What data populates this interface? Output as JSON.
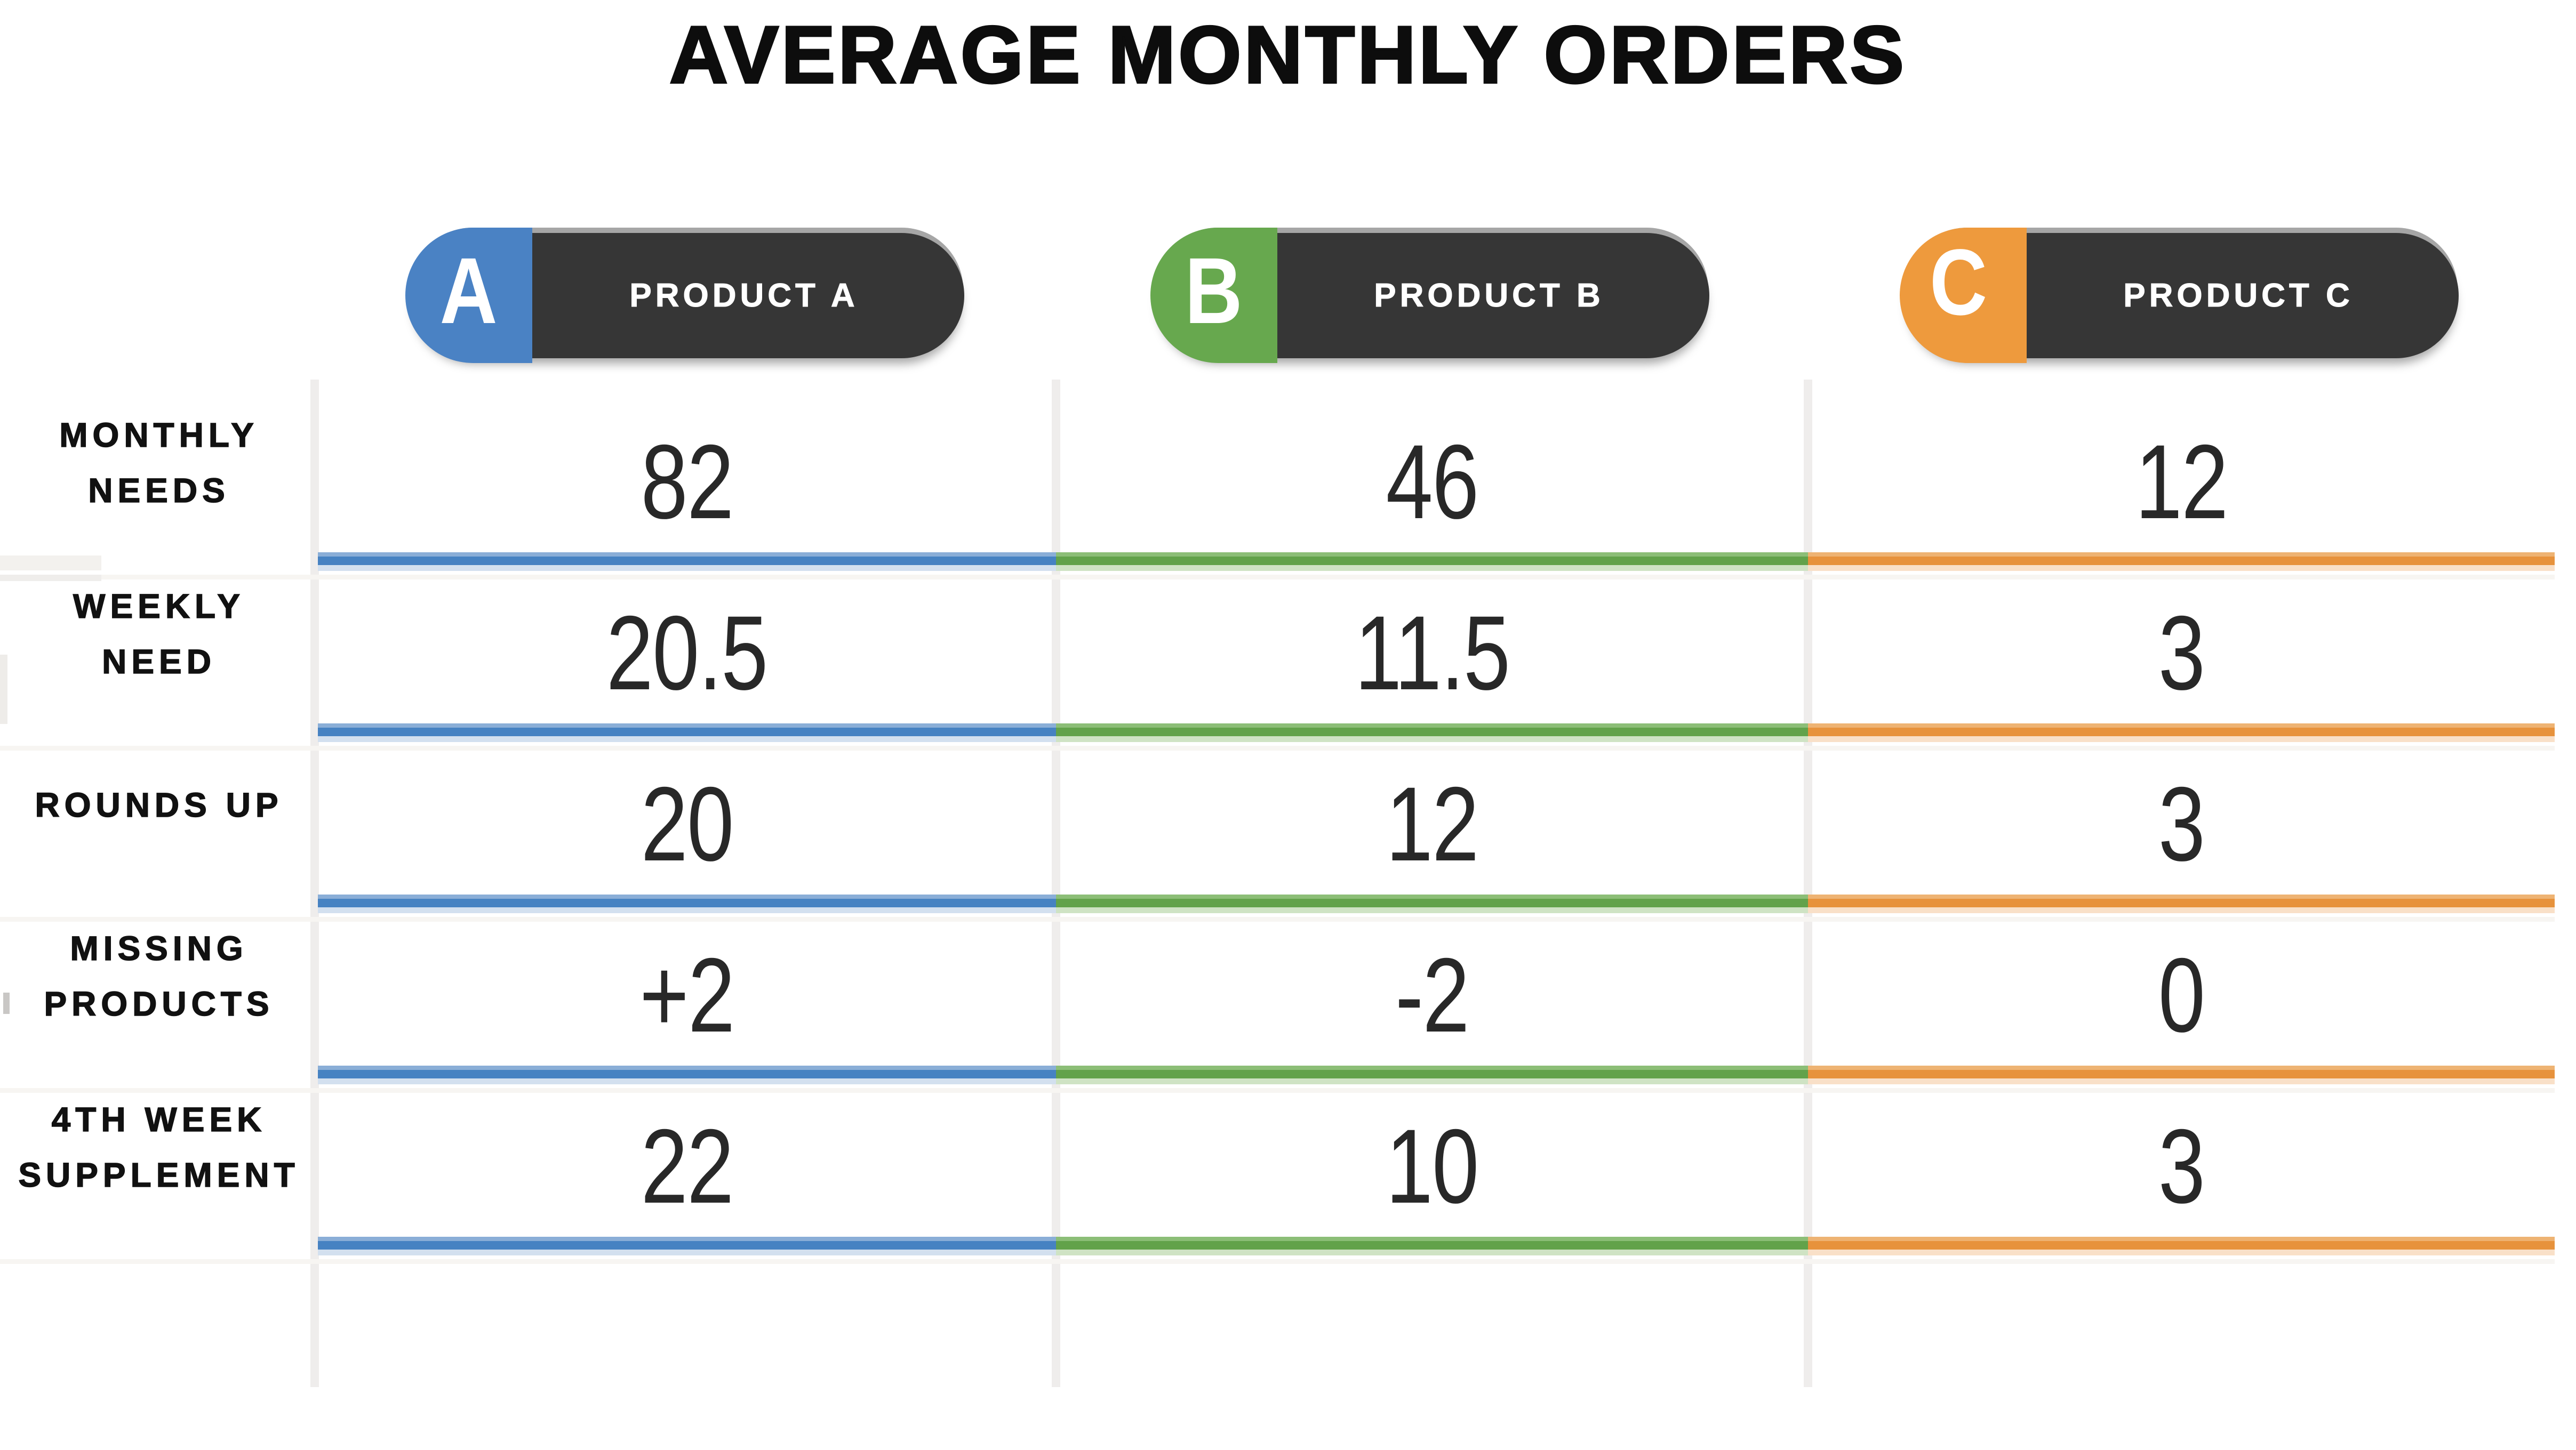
{
  "title": "AVERAGE MONTHLY ORDERS",
  "columns": [
    {
      "key": "a",
      "badge_letter": "A",
      "label": "PRODUCT A",
      "color": "#4682c2",
      "color_light": "#d3e0ef",
      "badge_color": "#4a82c4"
    },
    {
      "key": "b",
      "badge_letter": "B",
      "label": "PRODUCT B",
      "color": "#62a24a",
      "color_light": "#cfe3c4",
      "badge_color": "#67a84e"
    },
    {
      "key": "c",
      "badge_letter": "C",
      "label": "PRODUCT C",
      "color": "#e7923c",
      "color_light": "#f9e0c8",
      "badge_color": "#ee9a3d"
    }
  ],
  "pill_color": "#363636",
  "rows": [
    {
      "label_line1": "MONTHLY",
      "label_line2": "NEEDS",
      "values": {
        "a": "82",
        "b": "46",
        "c": "12"
      }
    },
    {
      "label_line1": "WEEKLY",
      "label_line2": "NEED",
      "values": {
        "a": "20.5",
        "b": "11.5",
        "c": "3"
      }
    },
    {
      "label_line1": "ROUNDS UP",
      "label_line2": "",
      "values": {
        "a": "20",
        "b": "12",
        "c": "3"
      }
    },
    {
      "label_line1": "MISSING",
      "label_line2": "PRODUCTS",
      "values": {
        "a": "+2",
        "b": "-2",
        "c": "0"
      }
    },
    {
      "label_line1": "4TH WEEK",
      "label_line2": "SUPPLEMENT",
      "values": {
        "a": "22",
        "b": "10",
        "c": "3"
      }
    }
  ],
  "chart_data": {
    "type": "table",
    "title": "AVERAGE MONTHLY ORDERS",
    "row_labels": [
      "MONTHLY NEEDS",
      "WEEKLY NEED",
      "ROUNDS UP",
      "MISSING PRODUCTS",
      "4TH WEEK SUPPLEMENT"
    ],
    "categories": [
      "PRODUCT A",
      "PRODUCT B",
      "PRODUCT C"
    ],
    "series": [
      {
        "name": "PRODUCT A",
        "values": [
          82,
          20.5,
          20,
          2,
          22
        ],
        "display_values": [
          "82",
          "20.5",
          "20",
          "+2",
          "22"
        ],
        "color": "#4682c2"
      },
      {
        "name": "PRODUCT B",
        "values": [
          46,
          11.5,
          12,
          -2,
          10
        ],
        "display_values": [
          "46",
          "11.5",
          "12",
          "-2",
          "10"
        ],
        "color": "#62a24a"
      },
      {
        "name": "PRODUCT C",
        "values": [
          12,
          3,
          3,
          0,
          3
        ],
        "display_values": [
          "12",
          "3",
          "3",
          "0",
          "3"
        ],
        "color": "#e7923c"
      }
    ],
    "legend_position": "top",
    "grid": "faint-column-dividers"
  }
}
